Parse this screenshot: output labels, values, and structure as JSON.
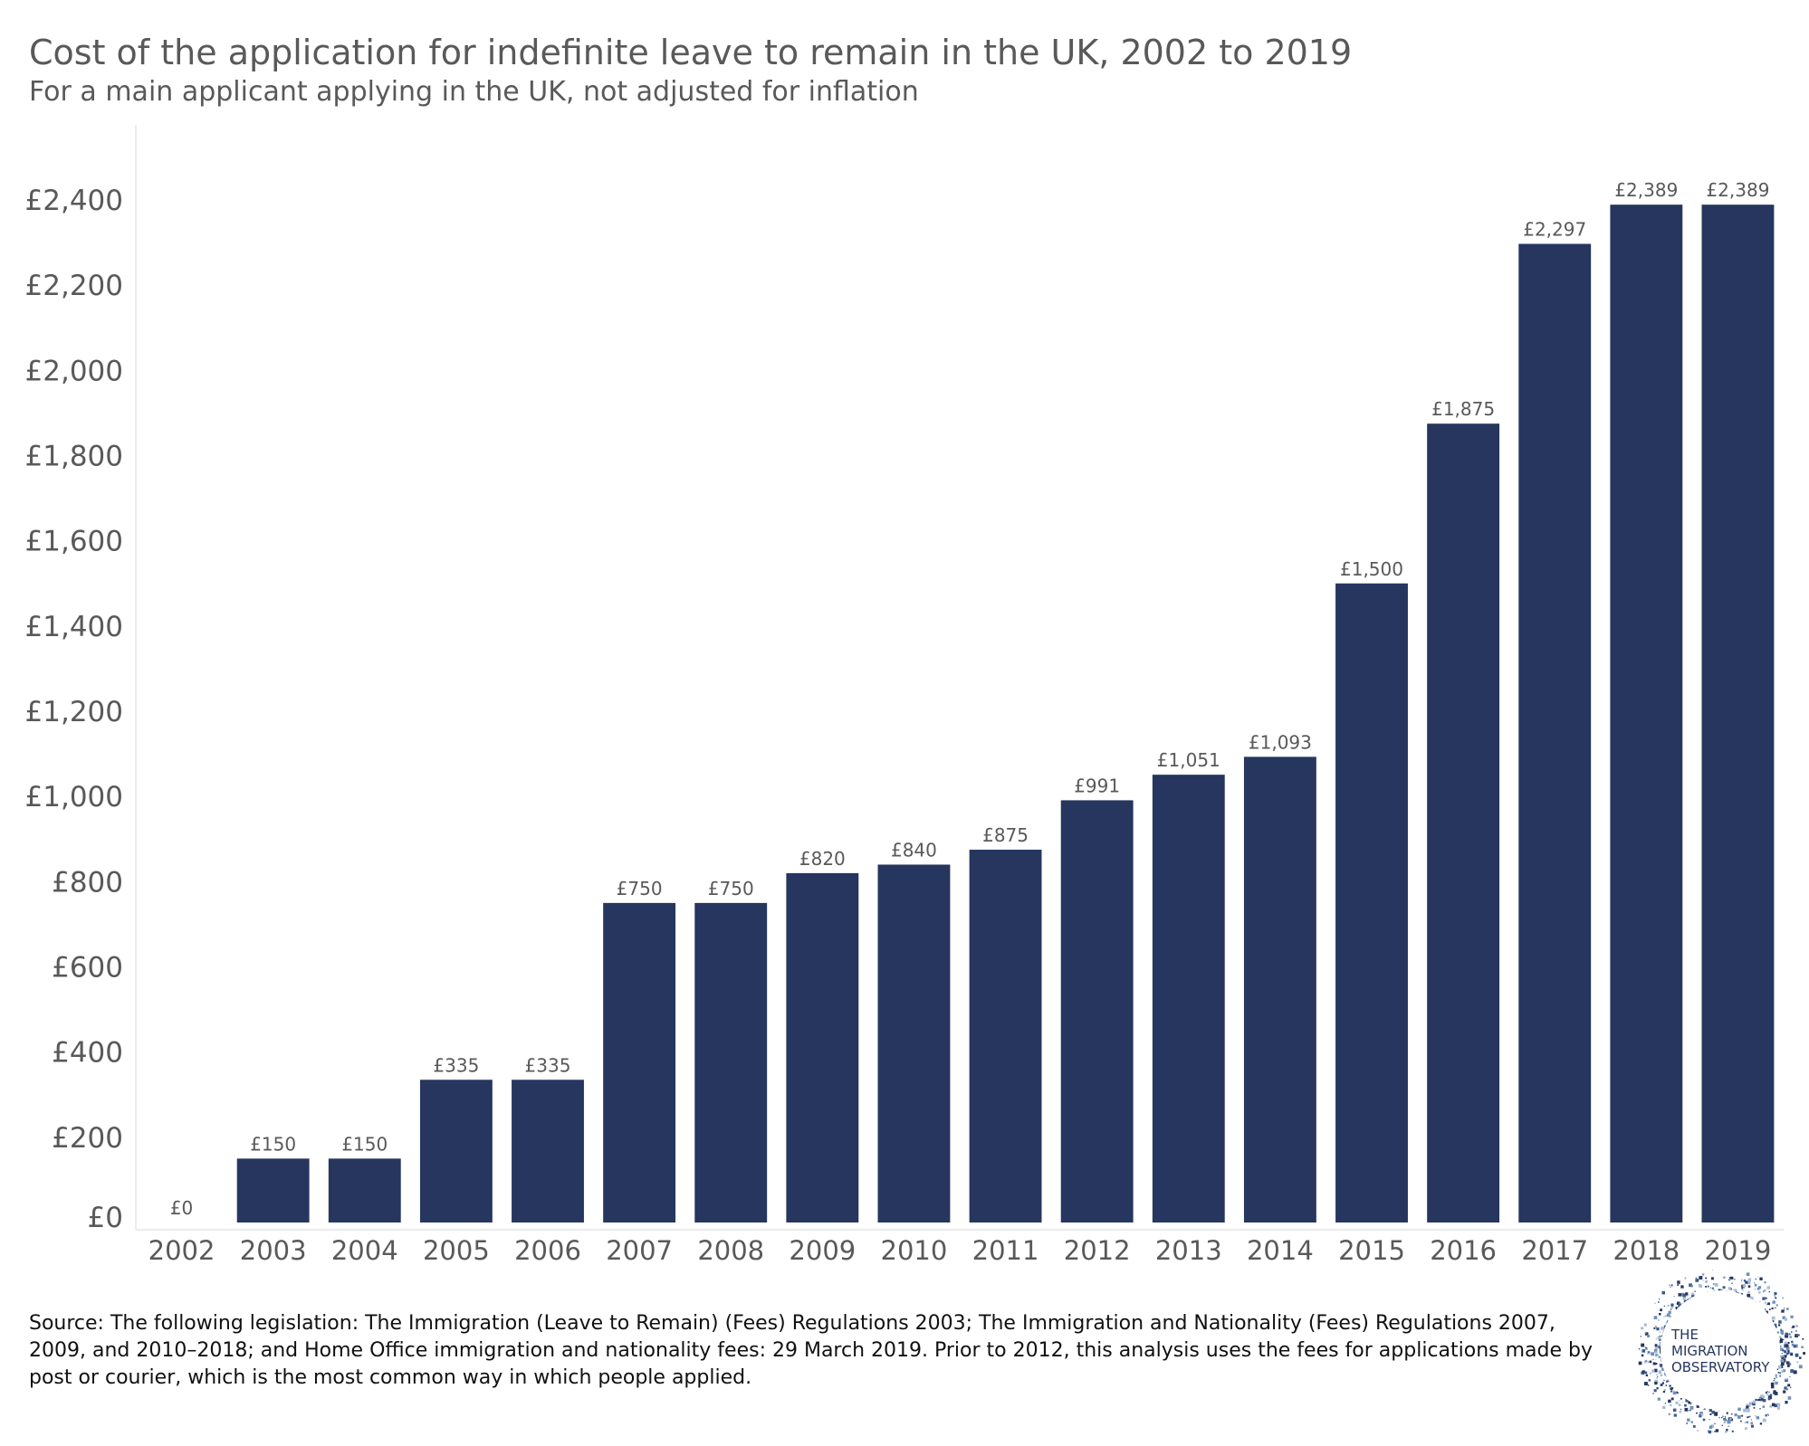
{
  "title": "Cost of the application for indefinite leave to remain in the UK, 2002 to 2019",
  "subtitle": "For a main applicant applying in the UK, not adjusted for inflation",
  "source": "Source: The following legislation: The Immigration (Leave to Remain) (Fees) Regulations 2003; The Immigration and Nationality (Fees) Regulations 2007, 2009, and 2010–2018; and Home Office immigration and nationality fees: 29 March 2019. Prior to 2012, this analysis uses the fees for applications made by post or courier, which is the most common way in which people applied.",
  "logo": {
    "line1": "THE",
    "line2": "MIGRATION",
    "line3": "OBSERVATORY"
  },
  "colors": {
    "bar": "#26365E",
    "text": "#595959",
    "axis": "#d9d9d9"
  },
  "chart_data": {
    "type": "bar",
    "title": "Cost of the application for indefinite leave to remain in the UK, 2002 to 2019",
    "subtitle": "For a main applicant applying in the UK, not adjusted for inflation",
    "xlabel": "",
    "ylabel": "",
    "ylim": [
      0,
      2560
    ],
    "yticks": [
      0,
      200,
      400,
      600,
      800,
      1000,
      1200,
      1400,
      1600,
      1800,
      2000,
      2200,
      2400
    ],
    "ytick_labels": [
      "£0",
      "£200",
      "£400",
      "£600",
      "£800",
      "£1,000",
      "£1,200",
      "£1,400",
      "£1,600",
      "£1,800",
      "£2,000",
      "£2,200",
      "£2,400"
    ],
    "categories": [
      "2002",
      "2003",
      "2004",
      "2005",
      "2006",
      "2007",
      "2008",
      "2009",
      "2010",
      "2011",
      "2012",
      "2013",
      "2014",
      "2015",
      "2016",
      "2017",
      "2018",
      "2019"
    ],
    "values": [
      0,
      150,
      150,
      335,
      335,
      750,
      750,
      820,
      840,
      875,
      991,
      1051,
      1093,
      1500,
      1875,
      2297,
      2389,
      2389
    ],
    "data_labels": [
      "£0",
      "£150",
      "£150",
      "£335",
      "£335",
      "£750",
      "£750",
      "£820",
      "£840",
      "£875",
      "£991",
      "£1,051",
      "£1,093",
      "£1,500",
      "£1,875",
      "£2,297",
      "£2,389",
      "£2,389"
    ],
    "grid": false,
    "legend": "none"
  }
}
